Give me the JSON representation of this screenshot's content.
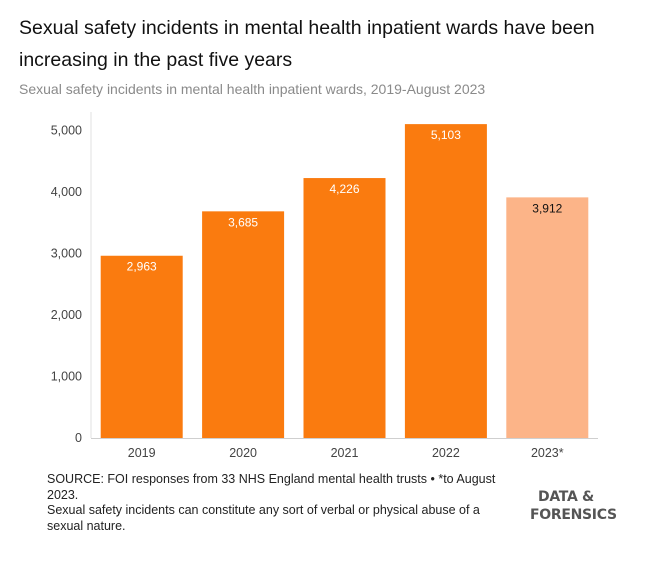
{
  "chart_data": {
    "type": "bar",
    "title": "Sexual safety incidents in mental health inpatient wards have been increasing in the past five years",
    "subtitle": "Sexual safety incidents in mental health inpatient wards, 2019-August 2023",
    "categories": [
      "2019",
      "2020",
      "2021",
      "2022",
      "2023*"
    ],
    "values": [
      2963,
      3685,
      4226,
      5103,
      3912
    ],
    "value_labels": [
      "2,963",
      "3,685",
      "4,226",
      "5,103",
      "3,912"
    ],
    "highlight": [
      false,
      false,
      false,
      false,
      true
    ],
    "ylim": [
      0,
      5300
    ],
    "yticks": [
      0,
      1000,
      2000,
      3000,
      4000,
      5000
    ],
    "ytick_labels": [
      "0",
      "1,000",
      "2,000",
      "3,000",
      "4,000",
      "5,000"
    ],
    "xlabel": "",
    "ylabel": "",
    "colors": {
      "bar": "#fa7b0f",
      "bar_partial": "#fcb488",
      "label_on_bar": "#ffffff",
      "label_partial": "#111111"
    }
  },
  "footer": {
    "source": "SOURCE: FOI responses from 33 NHS England mental health trusts • *to August 2023.",
    "note": "Sexual safety incidents can constitute any sort of verbal or physical abuse of a sexual nature."
  },
  "brand": {
    "line1": "DATA &",
    "line2": "FORENSICS"
  }
}
